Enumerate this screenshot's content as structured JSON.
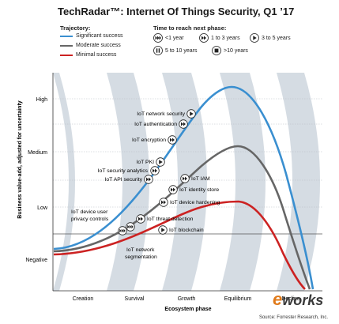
{
  "title": "TechRadar™: Internet Of Things Security, Q1 ’17",
  "legend": {
    "trajectory_heading": "Trajectory:",
    "trajectories": [
      {
        "label": "Significant success",
        "color": "#3a8fd0"
      },
      {
        "label": "Moderate success",
        "color": "#666666"
      },
      {
        "label": "Minimal success",
        "color": "#cc2222"
      }
    ],
    "time_heading": "Time to reach next phase:",
    "times": [
      {
        "label": "<1 year",
        "icon": "triple-chevron-icon"
      },
      {
        "label": "1 to 3 years",
        "icon": "double-chevron-icon"
      },
      {
        "label": "3 to 5 years",
        "icon": "play-icon"
      },
      {
        "label": "5 to 10 years",
        "icon": "pause-icon"
      },
      {
        "label": ">10 years",
        "icon": "stop-icon"
      }
    ]
  },
  "chart_data": {
    "type": "line",
    "ylabel": "Business value-add, adjusted for uncertainty",
    "xlabel": "Ecosystem phase",
    "y_levels": [
      "High",
      "Medium",
      "Low",
      "Negative"
    ],
    "phases": [
      "Creation",
      "Survival",
      "Growth",
      "Equilibrium",
      "Decline"
    ],
    "series": [
      {
        "name": "Significant success",
        "color": "#3a8fd0"
      },
      {
        "name": "Moderate success",
        "color": "#666666"
      },
      {
        "name": "Minimal success",
        "color": "#cc2222"
      }
    ],
    "technologies": [
      {
        "label": "IoT network security",
        "icon": "play-icon",
        "trajectory": "Significant success"
      },
      {
        "label": "IoT authentication",
        "icon": "double-chevron-icon",
        "trajectory": "Significant success"
      },
      {
        "label": "IoT encryption",
        "icon": "double-chevron-icon",
        "trajectory": "Significant success"
      },
      {
        "label": "IoT PKI",
        "icon": "play-icon",
        "trajectory": "Significant success"
      },
      {
        "label": "IoT security analytics",
        "icon": "double-chevron-icon",
        "trajectory": "Significant success"
      },
      {
        "label": "IoT API security",
        "icon": "double-chevron-icon",
        "trajectory": "Significant success"
      },
      {
        "label": "IoT IAM",
        "icon": "double-chevron-icon",
        "trajectory": "Moderate success"
      },
      {
        "label": "IoT identity store",
        "icon": "double-chevron-icon",
        "trajectory": "Moderate success"
      },
      {
        "label": "IoT device hardening",
        "icon": "double-chevron-icon",
        "trajectory": "Moderate success"
      },
      {
        "label": "IoT threat detection",
        "icon": "double-chevron-icon",
        "trajectory": "Moderate success"
      },
      {
        "label": "IoT device user privacy controls",
        "icon": "triple-chevron-icon",
        "trajectory": "Moderate success"
      },
      {
        "label": "IoT blockchain",
        "icon": "play-icon",
        "trajectory": "Minimal success"
      },
      {
        "label": "IoT network segmentation",
        "icon": "triple-chevron-icon",
        "trajectory": "Minimal success"
      }
    ]
  },
  "labels": {
    "tech_network_security": "IoT network security",
    "tech_authentication": "IoT authentication",
    "tech_encryption": "IoT encryption",
    "tech_pki": "IoT PKI",
    "tech_security_analytics": "IoT security analytics",
    "tech_api_security": "IoT API security",
    "tech_iam": "IoT IAM",
    "tech_identity_store": "IoT identity store",
    "tech_device_hardening": "IoT device hardening",
    "tech_threat_detection": "IoT threat detection",
    "tech_privacy_line1": "IoT device user",
    "tech_privacy_line2": "privacy controls",
    "tech_blockchain": "IoT blockchain",
    "tech_segmentation_line1": "IoT network",
    "tech_segmentation_line2": "segmentation"
  },
  "source": "Source: Forrester Research, Inc.",
  "watermark": {
    "e": "e",
    "rest": "works"
  },
  "colors": {
    "band": "#d5dce3",
    "blue": "#3a8fd0",
    "gray": "#666666",
    "red": "#cc2222"
  }
}
